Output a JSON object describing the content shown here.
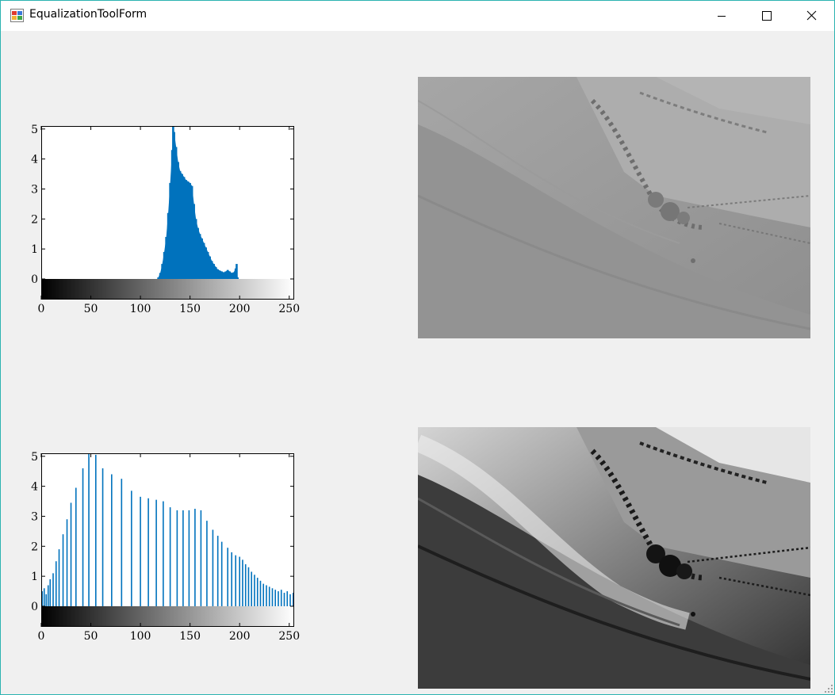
{
  "window": {
    "title": "EqualizationToolForm",
    "icon": "winforms-app-icon",
    "controls": [
      "minimize-icon",
      "maximize-icon",
      "close-icon"
    ]
  },
  "histograms": [
    {
      "id": "original",
      "y_tick_labels": [
        "0",
        "1",
        "2",
        "3",
        "4",
        "5"
      ],
      "x_tick_labels": [
        "0",
        "50",
        "100",
        "150",
        "200",
        "250"
      ],
      "bar_color": "#0072bd"
    },
    {
      "id": "equalized",
      "y_tick_labels": [
        "0",
        "1",
        "2",
        "3",
        "4",
        "5"
      ],
      "x_tick_labels": [
        "0",
        "50",
        "100",
        "150",
        "200",
        "250"
      ],
      "bar_color": "#0072bd"
    }
  ],
  "chart_data": [
    {
      "type": "bar",
      "title": "",
      "xlim": [
        0,
        255
      ],
      "ylim": [
        0,
        5.1
      ],
      "y_ticks": [
        0,
        1,
        2,
        3,
        4,
        5
      ],
      "x_ticks": [
        0,
        50,
        100,
        150,
        200,
        250
      ],
      "colorbar": "grayscale 0-255",
      "series": [
        {
          "x": [
            118,
            120,
            122,
            124,
            126,
            128,
            130,
            132,
            133,
            134,
            136,
            138,
            140,
            142,
            144,
            146,
            148,
            150,
            152,
            154,
            156,
            158,
            160,
            162,
            164,
            166,
            168,
            170,
            172,
            174,
            176,
            178,
            180,
            182,
            184,
            186,
            188,
            190,
            192,
            194,
            196,
            197,
            198
          ],
          "values": [
            0.05,
            0.2,
            0.5,
            0.9,
            1.4,
            2.2,
            3.2,
            4.3,
            5.1,
            4.9,
            4.4,
            3.9,
            3.6,
            3.5,
            3.4,
            3.3,
            3.25,
            3.2,
            3.1,
            2.5,
            2.0,
            1.7,
            1.5,
            1.35,
            1.2,
            1.05,
            0.9,
            0.75,
            0.6,
            0.5,
            0.4,
            0.32,
            0.28,
            0.25,
            0.22,
            0.25,
            0.3,
            0.25,
            0.2,
            0.22,
            0.35,
            0.5,
            0.05
          ]
        }
      ]
    },
    {
      "type": "bar",
      "title": "",
      "xlim": [
        0,
        255
      ],
      "ylim": [
        0,
        5.1
      ],
      "y_ticks": [
        0,
        1,
        2,
        3,
        4,
        5
      ],
      "x_ticks": [
        0,
        50,
        100,
        150,
        200,
        250
      ],
      "colorbar": "grayscale 0-255",
      "series": [
        {
          "x": [
            1,
            3,
            5,
            7,
            9,
            12,
            15,
            18,
            22,
            26,
            30,
            35,
            42,
            48,
            55,
            62,
            71,
            81,
            91,
            100,
            108,
            116,
            123,
            130,
            137,
            143,
            149,
            155,
            161,
            167,
            173,
            178,
            182,
            188,
            192,
            196,
            200,
            203,
            206,
            209,
            212,
            215,
            218,
            221,
            224,
            227,
            230,
            233,
            236,
            239,
            242,
            245,
            248,
            251,
            254
          ],
          "values": [
            0.5,
            0.6,
            0.4,
            0.7,
            0.9,
            1.1,
            1.5,
            1.9,
            2.4,
            2.9,
            3.45,
            3.95,
            4.6,
            5.1,
            5.05,
            4.6,
            4.4,
            4.25,
            3.85,
            3.65,
            3.6,
            3.55,
            3.5,
            3.3,
            3.2,
            3.2,
            3.2,
            3.25,
            3.2,
            2.85,
            2.55,
            2.35,
            2.15,
            1.95,
            1.8,
            1.7,
            1.65,
            1.55,
            1.4,
            1.3,
            1.15,
            1.05,
            0.95,
            0.85,
            0.75,
            0.7,
            0.65,
            0.6,
            0.55,
            0.5,
            0.55,
            0.45,
            0.5,
            0.4,
            0.45
          ]
        }
      ]
    }
  ],
  "images": [
    {
      "id": "original-photo",
      "description_icon": "landscape-image"
    },
    {
      "id": "equalized-photo",
      "description_icon": "landscape-image"
    }
  ],
  "colors": {
    "background": "#f0f0f0",
    "titlebar": "#ffffff",
    "window_border": "#2bb3b0",
    "bar": "#0072bd"
  }
}
